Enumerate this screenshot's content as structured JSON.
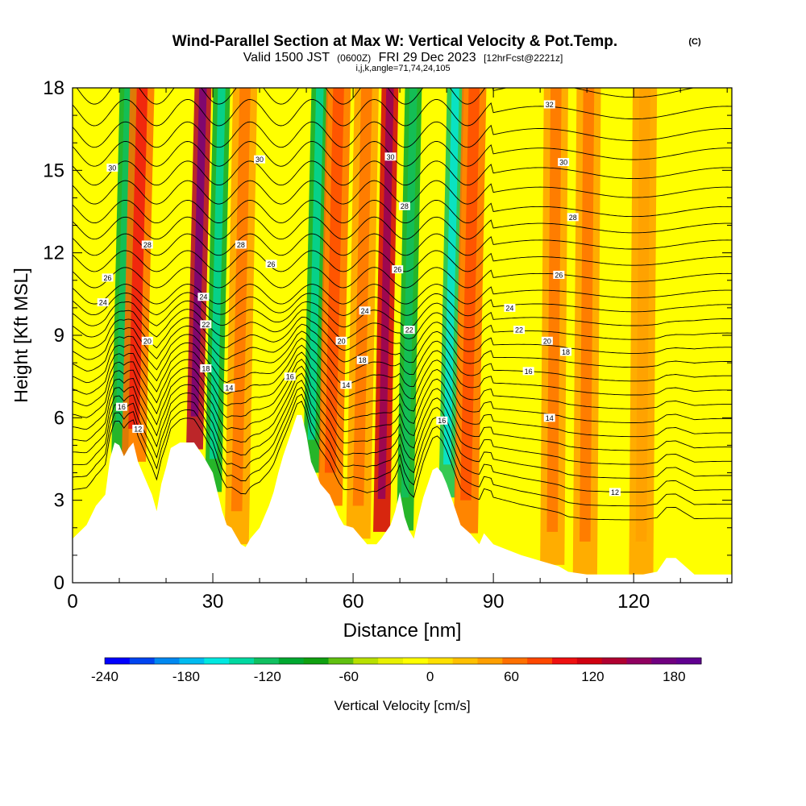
{
  "chart_data": {
    "type": "heatmap",
    "title": "Wind-Parallel Section at Max W: Vertical Velocity & Pot.Temp.",
    "title_unit": "(C)",
    "subtitle_valid": "Valid 1500 JST",
    "subtitle_utc": "(0600Z)",
    "subtitle_date": "FRI 29 Dec 2023",
    "subtitle_fcst": "[12hrFcst@2221z]",
    "subtitle_indices": "i,j,k,angle=71,74,24,105",
    "xlabel": "Distance [nm]",
    "ylabel": "Height [Kft MSL]",
    "xlim": [
      0,
      141
    ],
    "ylim": [
      0,
      18
    ],
    "x_ticks": [
      0,
      30,
      60,
      90,
      120
    ],
    "y_ticks": [
      0,
      3,
      6,
      9,
      12,
      15,
      18
    ],
    "colorbar": {
      "label": "Vertical Velocity [cm/s]",
      "range": [
        -240,
        200
      ],
      "tick_values": [
        -240,
        -180,
        -120,
        -60,
        0,
        60,
        120,
        180
      ],
      "tick_labels": [
        "-240",
        "-180",
        "-120",
        "-60",
        "0",
        "60",
        "120",
        "180"
      ],
      "colors": [
        "#0000ff",
        "#0044f0",
        "#0088f0",
        "#00bbf0",
        "#00e8e0",
        "#00d8a0",
        "#10c060",
        "#00a830",
        "#10a010",
        "#60c010",
        "#b8e000",
        "#e8f000",
        "#ffff00",
        "#ffe000",
        "#ffc000",
        "#ff9f00",
        "#ff7000",
        "#ff4800",
        "#ee1010",
        "#d00010",
        "#b00030",
        "#900060",
        "#700080",
        "#600090"
      ]
    },
    "velocity_bands": [
      {
        "x": 11,
        "w": -100
      },
      {
        "x": 14,
        "w": 70
      },
      {
        "x": 27,
        "w": 130
      },
      {
        "x": 31,
        "w": -110
      },
      {
        "x": 36,
        "w": 50
      },
      {
        "x": 52,
        "w": -110
      },
      {
        "x": 56,
        "w": 60
      },
      {
        "x": 62,
        "w": 50
      },
      {
        "x": 67,
        "w": 120
      },
      {
        "x": 72,
        "w": -100
      },
      {
        "x": 81,
        "w": -120
      },
      {
        "x": 85,
        "w": 60
      },
      {
        "x": 103,
        "w": 40
      },
      {
        "x": 110,
        "w": 45
      },
      {
        "x": 122,
        "w": 35
      }
    ],
    "terrain": [
      {
        "x": 0,
        "y": 1.6
      },
      {
        "x": 3,
        "y": 2.1
      },
      {
        "x": 5,
        "y": 2.8
      },
      {
        "x": 7,
        "y": 3.2
      },
      {
        "x": 8,
        "y": 4.5
      },
      {
        "x": 9,
        "y": 5.1
      },
      {
        "x": 10,
        "y": 5.0
      },
      {
        "x": 11,
        "y": 4.6
      },
      {
        "x": 12,
        "y": 4.9
      },
      {
        "x": 13,
        "y": 5.1
      },
      {
        "x": 14,
        "y": 4.4
      },
      {
        "x": 15,
        "y": 4.0
      },
      {
        "x": 16,
        "y": 3.6
      },
      {
        "x": 17,
        "y": 3.2
      },
      {
        "x": 18,
        "y": 2.6
      },
      {
        "x": 19,
        "y": 3.6
      },
      {
        "x": 20,
        "y": 4.2
      },
      {
        "x": 21,
        "y": 4.9
      },
      {
        "x": 23,
        "y": 5.1
      },
      {
        "x": 26,
        "y": 5.1
      },
      {
        "x": 28,
        "y": 4.6
      },
      {
        "x": 30,
        "y": 4.0
      },
      {
        "x": 31,
        "y": 3.3
      },
      {
        "x": 32,
        "y": 2.6
      },
      {
        "x": 33,
        "y": 2.1
      },
      {
        "x": 34,
        "y": 2.0
      },
      {
        "x": 35,
        "y": 1.7
      },
      {
        "x": 36,
        "y": 1.4
      },
      {
        "x": 37,
        "y": 1.3
      },
      {
        "x": 38,
        "y": 1.6
      },
      {
        "x": 40,
        "y": 2.0
      },
      {
        "x": 41,
        "y": 2.4
      },
      {
        "x": 42,
        "y": 2.8
      },
      {
        "x": 43,
        "y": 3.3
      },
      {
        "x": 44,
        "y": 4.0
      },
      {
        "x": 45,
        "y": 4.6
      },
      {
        "x": 47,
        "y": 5.6
      },
      {
        "x": 48,
        "y": 6.1
      },
      {
        "x": 49,
        "y": 6.1
      },
      {
        "x": 50,
        "y": 5.4
      },
      {
        "x": 51,
        "y": 4.4
      },
      {
        "x": 52,
        "y": 4.0
      },
      {
        "x": 53,
        "y": 3.6
      },
      {
        "x": 55,
        "y": 3.2
      },
      {
        "x": 57,
        "y": 2.4
      },
      {
        "x": 58,
        "y": 2.1
      },
      {
        "x": 60,
        "y": 2.0
      },
      {
        "x": 61,
        "y": 1.8
      },
      {
        "x": 62,
        "y": 1.6
      },
      {
        "x": 63,
        "y": 1.4
      },
      {
        "x": 65,
        "y": 1.4
      },
      {
        "x": 66,
        "y": 1.6
      },
      {
        "x": 68,
        "y": 2.1
      },
      {
        "x": 69,
        "y": 2.6
      },
      {
        "x": 70,
        "y": 3.3
      },
      {
        "x": 71,
        "y": 2.4
      },
      {
        "x": 72,
        "y": 1.9
      },
      {
        "x": 73,
        "y": 1.6
      },
      {
        "x": 74,
        "y": 2.4
      },
      {
        "x": 75,
        "y": 3.1
      },
      {
        "x": 76,
        "y": 3.6
      },
      {
        "x": 77,
        "y": 4.1
      },
      {
        "x": 78,
        "y": 4.2
      },
      {
        "x": 79,
        "y": 4.0
      },
      {
        "x": 80,
        "y": 3.6
      },
      {
        "x": 81,
        "y": 3.1
      },
      {
        "x": 82,
        "y": 2.6
      },
      {
        "x": 83,
        "y": 2.1
      },
      {
        "x": 85,
        "y": 1.8
      },
      {
        "x": 87,
        "y": 1.4
      },
      {
        "x": 88,
        "y": 1.8
      },
      {
        "x": 90,
        "y": 1.4
      },
      {
        "x": 93,
        "y": 1.2
      },
      {
        "x": 96,
        "y": 1.0
      },
      {
        "x": 98,
        "y": 0.9
      },
      {
        "x": 100,
        "y": 0.8
      },
      {
        "x": 104,
        "y": 0.6
      },
      {
        "x": 106,
        "y": 0.4
      },
      {
        "x": 110,
        "y": 0.3
      },
      {
        "x": 114,
        "y": 0.3
      },
      {
        "x": 118,
        "y": 0.3
      },
      {
        "x": 122,
        "y": 0.3
      },
      {
        "x": 125,
        "y": 0.4
      },
      {
        "x": 127,
        "y": 0.9
      },
      {
        "x": 129,
        "y": 0.9
      },
      {
        "x": 131,
        "y": 0.6
      },
      {
        "x": 133,
        "y": 0.3
      },
      {
        "x": 141,
        "y": 0.3
      }
    ],
    "isentropes": [
      {
        "offset": 2.0
      },
      {
        "offset": 2.5
      },
      {
        "offset": 3.0
      },
      {
        "offset": 3.5
      },
      {
        "offset": 4.0
      },
      {
        "offset": 4.5
      },
      {
        "offset": 5.0
      },
      {
        "offset": 5.5
      },
      {
        "offset": 6.0
      },
      {
        "offset": 6.5
      },
      {
        "offset": 7.0
      },
      {
        "offset": 7.5
      },
      {
        "offset": 8.0
      },
      {
        "offset": 8.5
      },
      {
        "offset": 9.0
      },
      {
        "offset": 9.5
      },
      {
        "offset": 10.0
      },
      {
        "offset": 10.6
      },
      {
        "offset": 11.2
      },
      {
        "offset": 11.8
      },
      {
        "offset": 12.4
      },
      {
        "offset": 13.0
      },
      {
        "offset": 13.7
      },
      {
        "offset": 14.4
      },
      {
        "offset": 15.1
      },
      {
        "offset": 15.8
      },
      {
        "offset": 16.6
      },
      {
        "offset": 17.4
      }
    ],
    "contour_labels": [
      {
        "text": "30",
        "x": 8.5,
        "y": 15.1
      },
      {
        "text": "28",
        "x": 16,
        "y": 12.3
      },
      {
        "text": "26",
        "x": 7.5,
        "y": 11.1
      },
      {
        "text": "24",
        "x": 6.5,
        "y": 10.2
      },
      {
        "text": "20",
        "x": 16,
        "y": 8.8
      },
      {
        "text": "16",
        "x": 10.5,
        "y": 6.4
      },
      {
        "text": "12",
        "x": 14,
        "y": 5.6
      },
      {
        "text": "24",
        "x": 28,
        "y": 10.4
      },
      {
        "text": "22",
        "x": 28.5,
        "y": 9.4
      },
      {
        "text": "18",
        "x": 28.5,
        "y": 7.8
      },
      {
        "text": "14",
        "x": 33.5,
        "y": 7.1
      },
      {
        "text": "28",
        "x": 36,
        "y": 12.3
      },
      {
        "text": "30",
        "x": 40,
        "y": 15.4
      },
      {
        "text": "26",
        "x": 42.5,
        "y": 11.6
      },
      {
        "text": "16",
        "x": 46.5,
        "y": 7.5
      },
      {
        "text": "20",
        "x": 57.5,
        "y": 8.8
      },
      {
        "text": "18",
        "x": 62,
        "y": 8.1
      },
      {
        "text": "14",
        "x": 58.5,
        "y": 7.2
      },
      {
        "text": "24",
        "x": 62.5,
        "y": 9.9
      },
      {
        "text": "26",
        "x": 69.5,
        "y": 11.4
      },
      {
        "text": "28",
        "x": 71,
        "y": 13.7
      },
      {
        "text": "30",
        "x": 68,
        "y": 15.5
      },
      {
        "text": "22",
        "x": 72,
        "y": 9.2
      },
      {
        "text": "16",
        "x": 79,
        "y": 5.9
      },
      {
        "text": "32",
        "x": 102,
        "y": 17.4
      },
      {
        "text": "30",
        "x": 105,
        "y": 15.3
      },
      {
        "text": "28",
        "x": 107,
        "y": 13.3
      },
      {
        "text": "26",
        "x": 104,
        "y": 11.2
      },
      {
        "text": "24",
        "x": 93.5,
        "y": 10.0
      },
      {
        "text": "22",
        "x": 95.5,
        "y": 9.2
      },
      {
        "text": "20",
        "x": 101.5,
        "y": 8.8
      },
      {
        "text": "18",
        "x": 105.5,
        "y": 8.4
      },
      {
        "text": "16",
        "x": 97.5,
        "y": 7.7
      },
      {
        "text": "14",
        "x": 102,
        "y": 6.0
      },
      {
        "text": "12",
        "x": 116,
        "y": 3.3
      }
    ],
    "grid": false,
    "legend": "colorbar-bottom"
  }
}
